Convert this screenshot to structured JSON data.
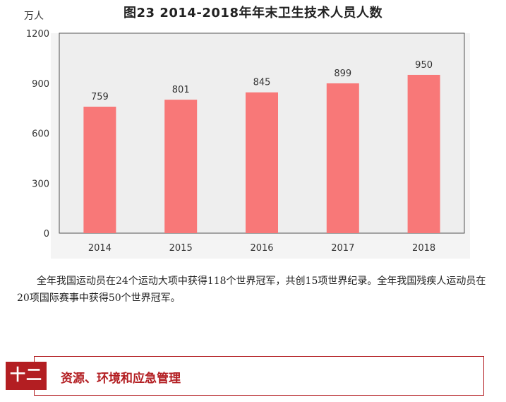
{
  "chart_data": {
    "type": "bar",
    "title": "图23   2014-2018年年末卫生技术人员人数",
    "ylabel": "万人",
    "categories": [
      "2014",
      "2015",
      "2016",
      "2017",
      "2018"
    ],
    "values": [
      759,
      801,
      845,
      899,
      950
    ],
    "ylim": [
      0,
      1200
    ],
    "yticks": [
      0,
      300,
      600,
      900,
      1200
    ],
    "grid": false,
    "bar_color": "#f87878",
    "plot_background": "#eeeeee"
  },
  "paragraph": "全年我国运动员在24个运动大项中获得118个世界冠军，共创15项世界纪录。全年我国残疾人运动员在20项国际赛事中获得50个世界冠军。",
  "section": {
    "number": "十二",
    "title": "资源、环境和应急管理",
    "accent_color": "#b31e22"
  }
}
